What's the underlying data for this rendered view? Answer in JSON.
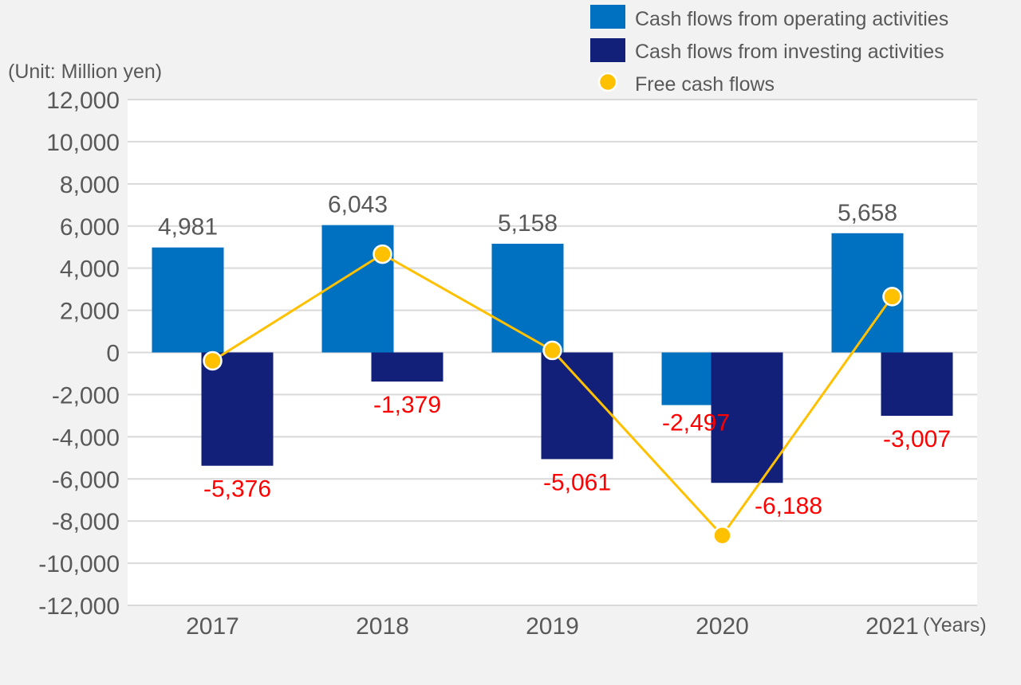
{
  "chart_data": {
    "type": "bar",
    "categories": [
      "2017",
      "2018",
      "2019",
      "2020",
      "2021"
    ],
    "series": [
      {
        "name": "Cash flows from operating activities",
        "kind": "bar",
        "color": "#0070c0",
        "values": [
          4981,
          6043,
          5158,
          -2497,
          5658
        ],
        "labels": [
          "4,981",
          "6,043",
          "5,158",
          "-2,497",
          "5,658"
        ]
      },
      {
        "name": "Cash flows from investing activities",
        "kind": "bar",
        "color": "#12207a",
        "values": [
          -5376,
          -1379,
          -5061,
          -6188,
          -3007
        ],
        "labels": [
          "-5,376",
          "-1,379",
          "-5,061",
          "-6,188",
          "-3,007"
        ]
      },
      {
        "name": "Free cash flows",
        "kind": "line",
        "color": "#ffc000",
        "values": [
          -395,
          4664,
          97,
          -8685,
          2651
        ]
      }
    ],
    "title": "",
    "unit_label": "(Unit: Million yen)",
    "xlabel": "(Years)",
    "ylabel": "",
    "ylim": [
      -12000,
      12000
    ],
    "y_ticks": [
      12000,
      10000,
      8000,
      6000,
      4000,
      2000,
      0,
      -2000,
      -4000,
      -6000,
      -8000,
      -10000,
      -12000
    ],
    "y_tick_labels": [
      "12,000",
      "10,000",
      "8,000",
      "6,000",
      "4,000",
      "2,000",
      "0",
      "-2,000",
      "-4,000",
      "-6,000",
      "-8,000",
      "-10,000",
      "-12,000"
    ],
    "grid": true,
    "legend": "top-right",
    "colors": {
      "background": "#f2f2f2",
      "plot_background": "#ffffff",
      "grid": "#d9d9d9",
      "positive_label": "#595959",
      "negative_label": "#ff0000",
      "point_outline": "#ffffff"
    }
  }
}
